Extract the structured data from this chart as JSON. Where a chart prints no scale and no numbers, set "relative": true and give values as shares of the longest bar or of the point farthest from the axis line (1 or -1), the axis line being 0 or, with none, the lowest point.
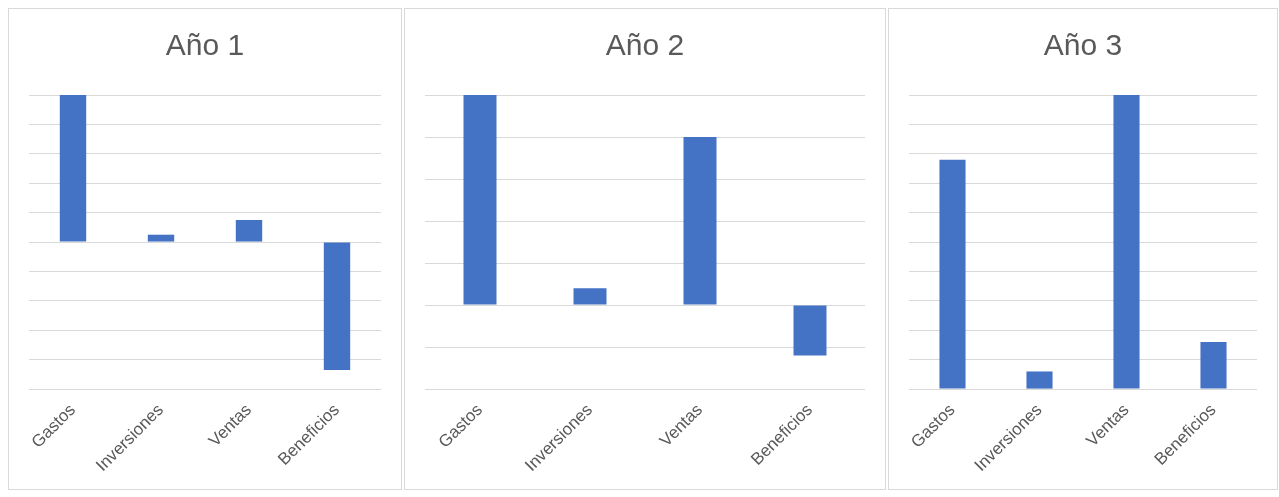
{
  "chart_data": [
    {
      "type": "bar",
      "title": "Año 1",
      "categories": [
        "Gastos",
        "Inversiones",
        "Ventas",
        "Beneficios"
      ],
      "values": [
        1,
        0.05,
        0.15,
        -0.87
      ],
      "color": "#4472c4",
      "relative": true,
      "grid": true
    },
    {
      "type": "bar",
      "title": "Año 2",
      "categories": [
        "Gastos",
        "Inversiones",
        "Ventas",
        "Beneficios"
      ],
      "values": [
        1,
        0.08,
        0.8,
        -0.24
      ],
      "color": "#4472c4",
      "relative": true,
      "grid": true
    },
    {
      "type": "bar",
      "title": "Año 3",
      "categories": [
        "Gastos",
        "Inversiones",
        "Ventas",
        "Beneficios"
      ],
      "values": [
        0.78,
        0.06,
        1,
        0.16
      ],
      "color": "#4472c4",
      "relative": true,
      "grid": true
    }
  ]
}
